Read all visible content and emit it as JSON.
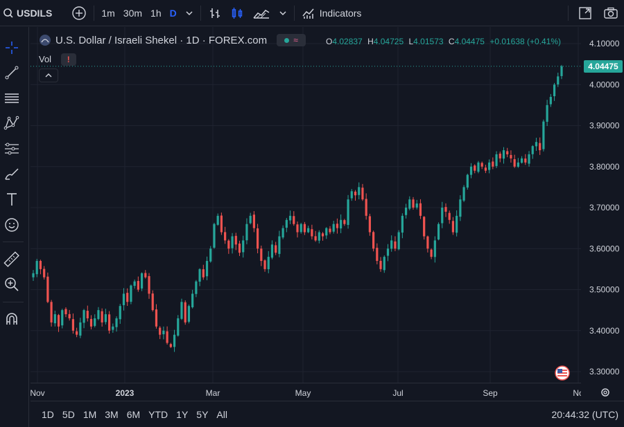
{
  "toolbar": {
    "symbol": "USDILS",
    "intervals": [
      "1m",
      "30m",
      "1h",
      "D"
    ],
    "active_interval": "D",
    "indicators_label": "Indicators"
  },
  "legend": {
    "title": "U.S. Dollar / Israeli Shekel · 1D · FOREX.com",
    "open_label": "O",
    "open": "4.02837",
    "high_label": "H",
    "high": "4.04725",
    "low_label": "L",
    "low": "4.01573",
    "close_label": "C",
    "close": "4.04475",
    "change": "+0.01638 (+0.41%)",
    "vol_label": "Vol",
    "vol_warning": "!",
    "wave_symbol": "≈"
  },
  "price_axis": {
    "ticks": [
      "4.10000",
      "4.00000",
      "3.90000",
      "3.80000",
      "3.70000",
      "3.60000",
      "3.50000",
      "3.40000",
      "3.30000"
    ],
    "last_price": "4.04475"
  },
  "time_axis": {
    "labels": [
      "Nov",
      "2023",
      "Mar",
      "May",
      "Jul",
      "Sep",
      "No"
    ]
  },
  "bottom_bar": {
    "ranges": [
      "1D",
      "5D",
      "1M",
      "3M",
      "6M",
      "YTD",
      "1Y",
      "5Y",
      "All"
    ],
    "clock": "20:44:32 (UTC)"
  },
  "colors": {
    "up": "#26a69a",
    "down": "#ef5350",
    "background": "#131722",
    "accent": "#2962ff",
    "grid": "#1f2330"
  },
  "icons": {
    "top": [
      "search-icon",
      "plus-circle-icon",
      "chevron-down-icon",
      "bar-chart-icon",
      "candlestick-icon",
      "area-chart-icon",
      "indicators-icon",
      "fullscreen-icon",
      "camera-icon"
    ],
    "left": [
      "crosshair-icon",
      "trend-line-icon",
      "horizontal-lines-icon",
      "pattern-icon",
      "fib-icon",
      "brush-icon",
      "text-icon",
      "emoji-icon",
      "ruler-icon",
      "zoom-icon",
      "magnet-icon"
    ]
  },
  "chart_data": {
    "type": "candlestick",
    "ylim": [
      3.28,
      4.14
    ],
    "x_labels": [
      "Nov",
      "2023",
      "Mar",
      "May",
      "Jul",
      "Sep",
      "No"
    ],
    "closes": [
      3.54,
      3.57,
      3.55,
      3.53,
      3.47,
      3.42,
      3.44,
      3.41,
      3.45,
      3.44,
      3.43,
      3.4,
      3.39,
      3.42,
      3.45,
      3.43,
      3.41,
      3.43,
      3.45,
      3.42,
      3.44,
      3.4,
      3.41,
      3.43,
      3.46,
      3.49,
      3.47,
      3.51,
      3.52,
      3.5,
      3.54,
      3.53,
      3.49,
      3.45,
      3.41,
      3.39,
      3.4,
      3.37,
      3.36,
      3.39,
      3.43,
      3.47,
      3.42,
      3.46,
      3.49,
      3.52,
      3.55,
      3.53,
      3.57,
      3.6,
      3.66,
      3.68,
      3.64,
      3.62,
      3.6,
      3.63,
      3.61,
      3.59,
      3.62,
      3.66,
      3.68,
      3.65,
      3.6,
      3.57,
      3.55,
      3.58,
      3.61,
      3.59,
      3.63,
      3.65,
      3.67,
      3.68,
      3.66,
      3.64,
      3.66,
      3.64,
      3.65,
      3.63,
      3.62,
      3.64,
      3.63,
      3.65,
      3.64,
      3.66,
      3.65,
      3.67,
      3.66,
      3.72,
      3.74,
      3.73,
      3.75,
      3.72,
      3.68,
      3.64,
      3.6,
      3.57,
      3.55,
      3.58,
      3.6,
      3.62,
      3.6,
      3.64,
      3.68,
      3.7,
      3.72,
      3.7,
      3.71,
      3.68,
      3.63,
      3.6,
      3.58,
      3.62,
      3.66,
      3.7,
      3.69,
      3.67,
      3.64,
      3.68,
      3.72,
      3.75,
      3.78,
      3.8,
      3.79,
      3.81,
      3.8,
      3.79,
      3.81,
      3.8,
      3.83,
      3.82,
      3.84,
      3.83,
      3.82,
      3.8,
      3.81,
      3.82,
      3.81,
      3.83,
      3.85,
      3.86,
      3.84,
      3.91,
      3.95,
      3.97,
      4.0,
      4.02,
      4.04475
    ]
  }
}
